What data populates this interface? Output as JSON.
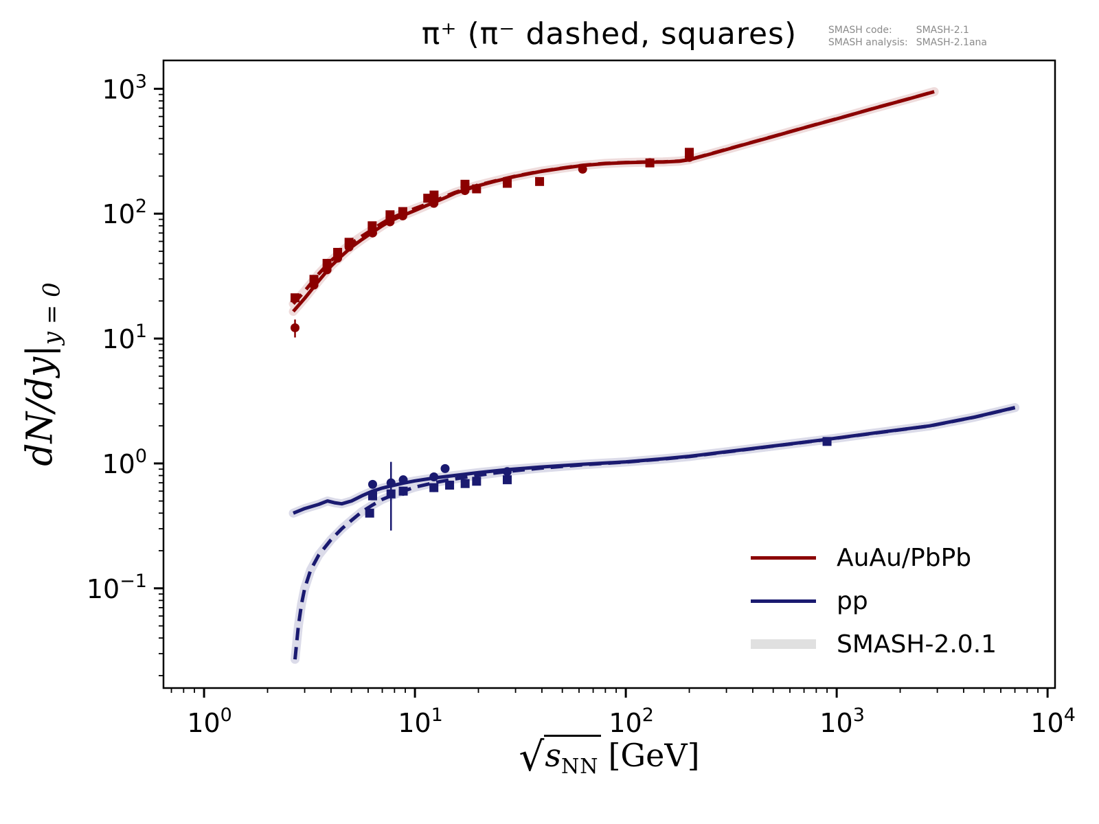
{
  "title": "π⁺ (π⁻ dashed, squares)",
  "watermark": {
    "row1_label": "SMASH code:",
    "row1_value": "SMASH-2.1",
    "row2_label": "SMASH analysis:",
    "row2_value": "SMASH-2.1ana"
  },
  "ylabel": {
    "main": "dN/dy",
    "bar": "|",
    "sub": "y = 0"
  },
  "xlabel": {
    "radical": "√",
    "symbol": "s",
    "sub": "NN",
    "unit": "[GeV]"
  },
  "legend": [
    {
      "label": "AuAu/PbPb",
      "color": "#8B0000",
      "kind": "line"
    },
    {
      "label": "pp",
      "color": "#1A1A70",
      "kind": "line"
    },
    {
      "label": "SMASH-2.0.1",
      "color": "#E0E0E0",
      "kind": "band"
    }
  ],
  "chart_data": {
    "type": "line",
    "title": "π⁺ (π⁻ dashed, squares)",
    "xlabel": "sqrt(s_NN) [GeV]",
    "ylabel": "dN/dy at y=0",
    "x_scale": "log",
    "y_scale": "log",
    "xlim": [
      0.642,
      10850
    ],
    "ylim": [
      0.0159,
      1687
    ],
    "x_tick_exponents": [
      0,
      1,
      2,
      3,
      4
    ],
    "y_tick_exponents": [
      3,
      2,
      1,
      0,
      -1
    ],
    "grid": false,
    "legend_position": "lower right",
    "colors": {
      "auau": "#8B0000",
      "pp": "#1A1A70",
      "band_red": "#EFDCDC",
      "band_blue": "#DBDBE9",
      "band_legend": "#E0E0E0",
      "axis": "#000000"
    },
    "series": [
      {
        "id": "auau-pip-line",
        "name": "AuAu/PbPb pi+ (SMASH-2.1)",
        "color_key": "auau",
        "dashed": false,
        "halo_key": "band_red",
        "points": [
          [
            2.65,
            16.5
          ],
          [
            3.0,
            21
          ],
          [
            3.5,
            29
          ],
          [
            4.0,
            38
          ],
          [
            4.5,
            46
          ],
          [
            5.0,
            54
          ],
          [
            5.6,
            62
          ],
          [
            6.3,
            71
          ],
          [
            7.0,
            80
          ],
          [
            7.6,
            87
          ],
          [
            8.3,
            93
          ],
          [
            8.8,
            97
          ],
          [
            10,
            106
          ],
          [
            11.2,
            115
          ],
          [
            12.3,
            123
          ],
          [
            14,
            135
          ],
          [
            15.5,
            146
          ],
          [
            17.3,
            155
          ],
          [
            19.6,
            166
          ],
          [
            24,
            182
          ],
          [
            30,
            199
          ],
          [
            39,
            217
          ],
          [
            50,
            231
          ],
          [
            62.4,
            243
          ],
          [
            80,
            252
          ],
          [
            100,
            256
          ],
          [
            120,
            258
          ],
          [
            150,
            259
          ],
          [
            180,
            263
          ],
          [
            200,
            270
          ],
          [
            260,
            305
          ],
          [
            350,
            351
          ],
          [
            500,
            415
          ],
          [
            700,
            487
          ],
          [
            1000,
            574
          ],
          [
            1500,
            697
          ],
          [
            2200,
            831
          ],
          [
            2900,
            948
          ]
        ]
      },
      {
        "id": "auau-pim-line",
        "name": "AuAu/PbPb pi- (SMASH-2.1)",
        "color_key": "auau",
        "dashed": true,
        "halo_key": "band_red",
        "points": [
          [
            2.65,
            19
          ],
          [
            3.0,
            24
          ],
          [
            3.5,
            33
          ],
          [
            4.0,
            42
          ],
          [
            4.5,
            50
          ],
          [
            5.0,
            58
          ],
          [
            5.6,
            66
          ],
          [
            6.3,
            75
          ],
          [
            7.0,
            84
          ],
          [
            7.6,
            91
          ],
          [
            8.3,
            97
          ],
          [
            8.8,
            101
          ],
          [
            10,
            110
          ],
          [
            11.2,
            118
          ],
          [
            12.3,
            126
          ],
          [
            14,
            138
          ],
          [
            15.5,
            148
          ],
          [
            17.3,
            157
          ],
          [
            19.6,
            168
          ],
          [
            24,
            183
          ],
          [
            30,
            200
          ],
          [
            39,
            218
          ],
          [
            50,
            232
          ],
          [
            62.4,
            244
          ],
          [
            80,
            253
          ],
          [
            100,
            257
          ],
          [
            120,
            259
          ],
          [
            150,
            260
          ],
          [
            180,
            264
          ],
          [
            200,
            271
          ],
          [
            260,
            306
          ],
          [
            350,
            352
          ],
          [
            500,
            416
          ],
          [
            700,
            488
          ],
          [
            1000,
            575
          ],
          [
            1500,
            698
          ],
          [
            2200,
            832
          ],
          [
            2900,
            950
          ]
        ]
      },
      {
        "id": "pp-pip-line",
        "name": "pp pi+ (SMASH-2.1)",
        "color_key": "pp",
        "dashed": false,
        "halo_key": "band_blue",
        "points": [
          [
            2.65,
            0.4
          ],
          [
            3.0,
            0.435
          ],
          [
            3.5,
            0.47
          ],
          [
            3.85,
            0.5
          ],
          [
            4.15,
            0.485
          ],
          [
            4.5,
            0.475
          ],
          [
            5.0,
            0.5
          ],
          [
            5.6,
            0.55
          ],
          [
            6.3,
            0.6
          ],
          [
            7.0,
            0.635
          ],
          [
            7.7,
            0.66
          ],
          [
            8.8,
            0.695
          ],
          [
            10,
            0.725
          ],
          [
            12.3,
            0.765
          ],
          [
            14,
            0.785
          ],
          [
            17.3,
            0.82
          ],
          [
            20,
            0.845
          ],
          [
            27,
            0.89
          ],
          [
            39,
            0.935
          ],
          [
            62.4,
            0.985
          ],
          [
            100,
            1.03
          ],
          [
            150,
            1.09
          ],
          [
            200,
            1.14
          ],
          [
            300,
            1.24
          ],
          [
            500,
            1.38
          ],
          [
            900,
            1.56
          ],
          [
            1500,
            1.75
          ],
          [
            2760,
            2.0
          ],
          [
            4500,
            2.35
          ],
          [
            7000,
            2.8
          ]
        ]
      },
      {
        "id": "pp-pim-line",
        "name": "pp pi- (SMASH-2.1)",
        "color_key": "pp",
        "dashed": true,
        "halo_key": "band_blue",
        "points": [
          [
            2.7,
            0.027
          ],
          [
            2.8,
            0.05
          ],
          [
            2.9,
            0.075
          ],
          [
            3.0,
            0.1
          ],
          [
            3.2,
            0.14
          ],
          [
            3.5,
            0.185
          ],
          [
            4.0,
            0.245
          ],
          [
            4.5,
            0.3
          ],
          [
            5.0,
            0.35
          ],
          [
            5.6,
            0.41
          ],
          [
            6.3,
            0.465
          ],
          [
            7.0,
            0.515
          ],
          [
            7.7,
            0.55
          ],
          [
            8.8,
            0.6
          ],
          [
            10,
            0.645
          ],
          [
            12.3,
            0.7
          ],
          [
            14,
            0.73
          ],
          [
            17.3,
            0.775
          ],
          [
            20,
            0.805
          ],
          [
            27,
            0.86
          ],
          [
            39,
            0.915
          ],
          [
            62.4,
            0.975
          ],
          [
            100,
            1.025
          ],
          [
            150,
            1.085
          ],
          [
            200,
            1.135
          ],
          [
            300,
            1.235
          ],
          [
            500,
            1.375
          ],
          [
            900,
            1.555
          ],
          [
            1500,
            1.745
          ],
          [
            2760,
            1.995
          ],
          [
            4500,
            2.345
          ],
          [
            7000,
            2.795
          ]
        ]
      }
    ],
    "scatter": [
      {
        "id": "auau-pip-data",
        "name": "AuAu/PbPb pi+ data",
        "marker": "circle",
        "color_key": "auau",
        "points": [
          [
            2.7,
            12.2,
            2.0
          ],
          [
            3.32,
            26.8,
            1.5
          ],
          [
            3.83,
            35.5,
            1.8
          ],
          [
            4.3,
            44,
            2
          ],
          [
            4.87,
            54,
            2.5
          ],
          [
            6.3,
            70,
            4
          ],
          [
            7.62,
            86,
            4
          ],
          [
            8.76,
            96,
            5
          ],
          [
            12.3,
            121,
            6
          ],
          [
            17.27,
            153,
            8
          ],
          [
            62.4,
            227,
            12
          ],
          [
            130,
            256,
            10
          ],
          [
            200,
            282,
            16
          ]
        ]
      },
      {
        "id": "auau-pim-data",
        "name": "AuAu/PbPb pi- data",
        "marker": "square",
        "color_key": "auau",
        "points": [
          [
            2.7,
            21.2,
            1.2
          ],
          [
            3.32,
            29.8,
            1.5
          ],
          [
            3.83,
            40,
            2
          ],
          [
            4.3,
            49,
            2.2
          ],
          [
            4.87,
            59,
            2.6
          ],
          [
            6.27,
            80,
            4
          ],
          [
            7.62,
            98,
            5
          ],
          [
            8.76,
            104,
            5
          ],
          [
            11.5,
            133,
            7
          ],
          [
            12.32,
            141,
            7
          ],
          [
            17.27,
            172,
            9
          ],
          [
            19.6,
            158,
            10
          ],
          [
            27.4,
            175,
            9
          ],
          [
            39,
            181,
            9
          ],
          [
            130,
            255,
            13
          ],
          [
            200,
            310,
            20
          ]
        ]
      },
      {
        "id": "pp-pip-data",
        "name": "pp pi+ data",
        "marker": "circle",
        "color_key": "pp",
        "points": [
          [
            6.3,
            0.68,
            0.03
          ],
          [
            7.7,
            0.7,
            0.33
          ],
          [
            8.8,
            0.74,
            0.04
          ],
          [
            12.3,
            0.78,
            0.05
          ],
          [
            13.9,
            0.91,
            0.05
          ],
          [
            27.4,
            0.86,
            0.07
          ]
        ]
      },
      {
        "id": "pp-pim-data",
        "name": "pp pi- data",
        "marker": "square",
        "color_key": "pp",
        "points": [
          [
            6.1,
            0.4,
            0.03
          ],
          [
            6.3,
            0.55,
            0.03
          ],
          [
            7.7,
            0.57,
            0.28
          ],
          [
            8.8,
            0.6,
            0.05
          ],
          [
            12.3,
            0.64,
            0.05
          ],
          [
            14.6,
            0.67,
            0.04
          ],
          [
            17.3,
            0.69,
            0.04
          ],
          [
            19.6,
            0.72,
            0.05
          ],
          [
            27.4,
            0.74,
            0.05
          ],
          [
            900,
            1.5,
            0.08
          ]
        ]
      }
    ]
  }
}
